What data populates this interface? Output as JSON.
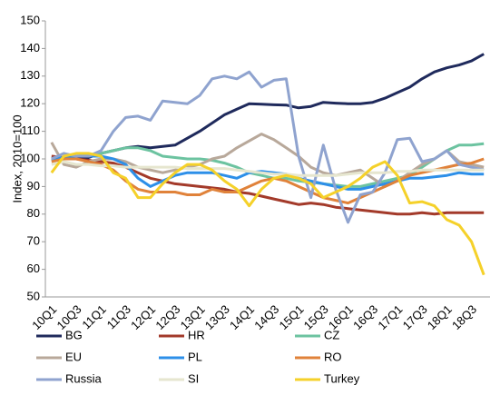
{
  "chart_data": {
    "type": "line",
    "y_label": "Index, 2010=100",
    "categories": [
      "10Q1",
      null,
      "10Q3",
      null,
      "11Q1",
      null,
      "11Q3",
      null,
      "12Q1",
      null,
      "12Q3",
      null,
      "13Q1",
      null,
      "13Q3",
      null,
      "14Q1",
      null,
      "14Q3",
      null,
      "15Q1",
      null,
      "15Q3",
      null,
      "16Q1",
      null,
      "16Q3",
      null,
      "17Q1",
      null,
      "17Q3",
      null,
      "18Q1",
      null,
      "18Q3",
      null
    ],
    "ylim": [
      50,
      150
    ],
    "yticks": [
      50,
      60,
      70,
      80,
      90,
      100,
      110,
      120,
      130,
      140,
      150
    ],
    "grid": false,
    "legend": "bottom",
    "series": [
      {
        "name": "BG",
        "color": "#1f2a5c",
        "values": [
          100,
          100,
          100,
          100.5,
          102,
          103,
          104,
          104.5,
          104,
          104.5,
          105,
          107.5,
          110,
          113,
          116,
          118,
          120,
          119.8,
          119.6,
          119.5,
          118.5,
          119,
          120.5,
          120.2,
          120,
          120,
          120.5,
          122,
          124,
          126,
          129,
          131.5,
          133,
          134,
          135.5,
          138
        ]
      },
      {
        "name": "HR",
        "color": "#a33a2a",
        "values": [
          101,
          100.5,
          100,
          99.5,
          99,
          98.5,
          97,
          95,
          93,
          92,
          91,
          90.5,
          90,
          89.5,
          89,
          88,
          87.5,
          86.5,
          85.5,
          84.5,
          83.5,
          84,
          83.5,
          82.5,
          82,
          81.5,
          81,
          80.5,
          80,
          80,
          80.5,
          80,
          80.5,
          80.5,
          80.5,
          80.5
        ]
      },
      {
        "name": "CZ",
        "color": "#6cc3a0",
        "values": [
          100,
          100.5,
          101,
          101.5,
          102,
          103,
          104,
          104,
          103,
          101,
          100.5,
          100,
          100,
          99.5,
          98.5,
          97,
          95,
          94,
          93,
          93,
          92,
          91.5,
          91,
          90.5,
          90,
          90,
          91,
          92,
          93,
          94,
          97,
          100,
          103,
          105,
          105,
          105.5
        ]
      },
      {
        "name": "EU",
        "color": "#b8a89a",
        "values": [
          106,
          98,
          97,
          99,
          100,
          100,
          99,
          97,
          96,
          95,
          96,
          97,
          98,
          100,
          101,
          104,
          106.5,
          109,
          107,
          104,
          101,
          97,
          95,
          94,
          95,
          96,
          93,
          90,
          92,
          95,
          98,
          100,
          103,
          99,
          98,
          97
        ]
      },
      {
        "name": "PL",
        "color": "#2d8fe8",
        "values": [
          100,
          100.5,
          101,
          101,
          101,
          100,
          98,
          93,
          90,
          92,
          94,
          95,
          95,
          95,
          94,
          93,
          95,
          95.5,
          95,
          94.5,
          93,
          92,
          91,
          90,
          89,
          89,
          90,
          91,
          92,
          93,
          93,
          93.5,
          94,
          95,
          94.5,
          94.5
        ]
      },
      {
        "name": "RO",
        "color": "#e0823a",
        "values": [
          99,
          100,
          100,
          99,
          98,
          96,
          92,
          89,
          88,
          88,
          88,
          87,
          87,
          89,
          88,
          88,
          90,
          92,
          93,
          92,
          90,
          88,
          86,
          85,
          84,
          86,
          88,
          90,
          92,
          94,
          95,
          96,
          97,
          98,
          98.5,
          100
        ]
      },
      {
        "name": "Russia",
        "color": "#8fa3cf",
        "values": [
          100,
          102,
          101,
          101,
          103,
          110,
          115,
          115.5,
          114,
          121,
          120.5,
          120,
          123,
          129,
          130,
          129,
          131.5,
          126,
          128.5,
          129,
          101,
          86,
          105,
          89,
          77,
          87,
          88,
          95,
          107,
          107.5,
          99,
          100,
          103,
          98,
          97,
          96
        ]
      },
      {
        "name": "SI",
        "color": "#e6e6cf",
        "values": [
          98,
          99,
          98,
          98,
          97.5,
          97.5,
          97,
          97,
          97,
          97,
          97,
          96.5,
          96.5,
          96.5,
          96.5,
          96,
          95.5,
          95,
          94.5,
          94.5,
          94,
          94,
          94,
          94,
          94.5,
          95,
          95,
          95,
          95.5,
          95.5,
          96,
          96,
          96,
          96,
          96,
          96
        ]
      },
      {
        "name": "Turkey",
        "color": "#f5d12a",
        "values": [
          95,
          101,
          102,
          102,
          101,
          95,
          93,
          86,
          86,
          91,
          95,
          98,
          98,
          96,
          92,
          89,
          83,
          89,
          93,
          94,
          93,
          91,
          86,
          88,
          90,
          93,
          97,
          99,
          94,
          84,
          84.5,
          83,
          78,
          76,
          70,
          58
        ]
      }
    ]
  }
}
